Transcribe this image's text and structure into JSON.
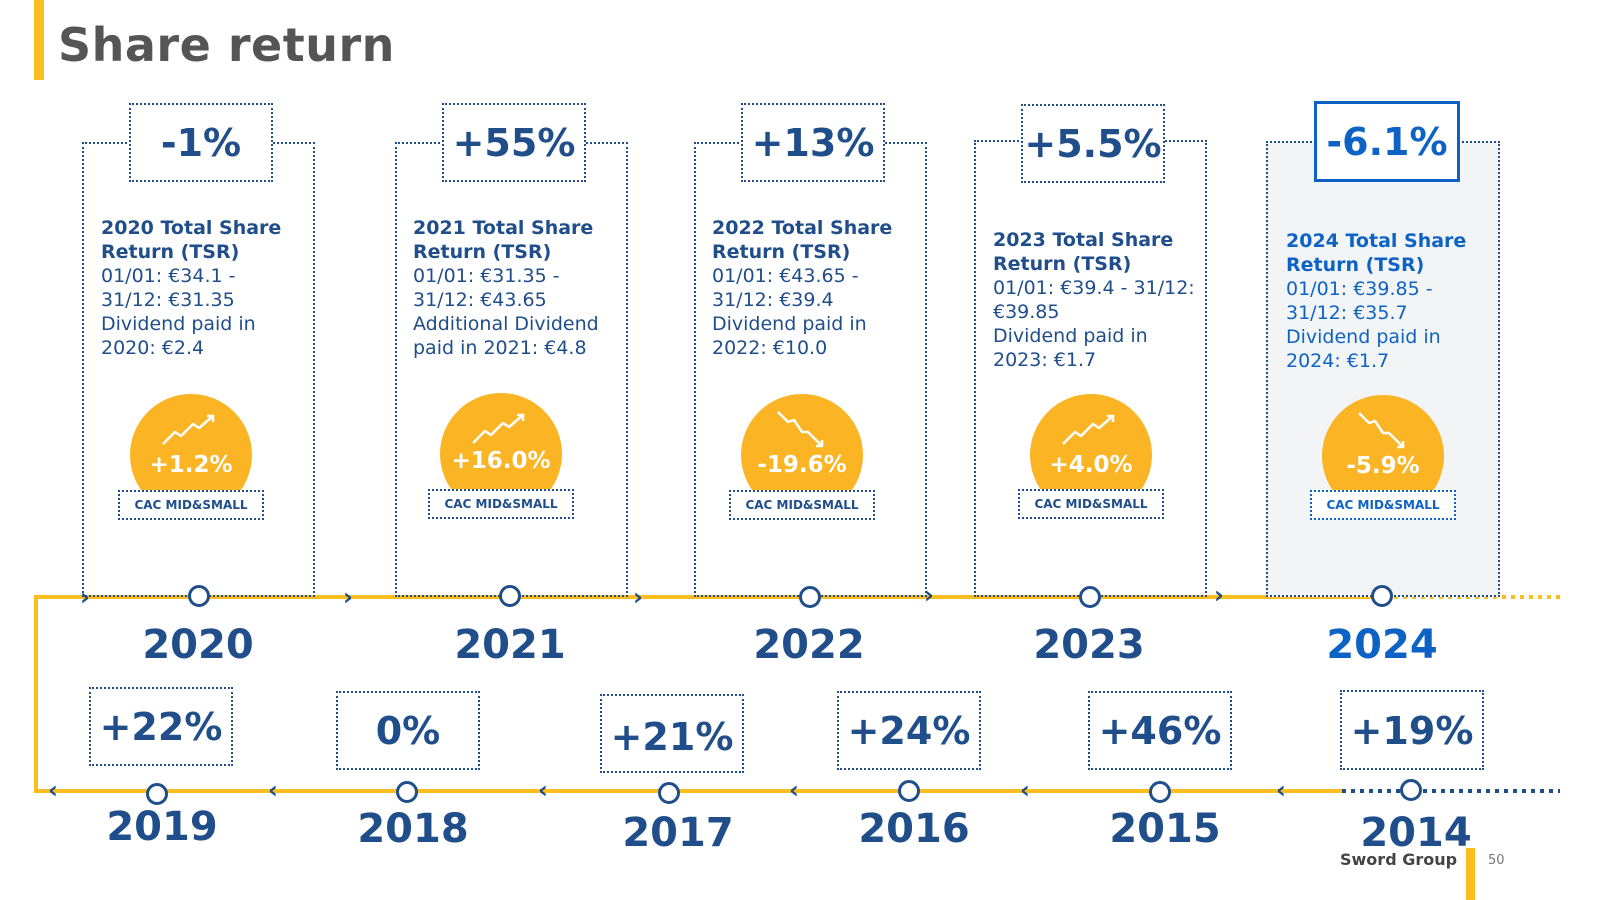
{
  "title": "Share return",
  "index_label": "CAC MID&SMALL",
  "recent": [
    {
      "year": "2020",
      "tsr": "-1%",
      "heading": "2020 Total Share Return (TSR)",
      "prices": "01/01: €34.1 - 31/12: €31.35",
      "dividend": "Dividend paid in 2020: €2.4",
      "index_return": "+1.2%",
      "trend": "up",
      "current": false
    },
    {
      "year": "2021",
      "tsr": "+55%",
      "heading": "2021 Total Share Return (TSR)",
      "prices": "01/01: €31.35 - 31/12: €43.65",
      "dividend": "Additional Dividend paid in 2021: €4.8",
      "index_return": "+16.0%",
      "trend": "up",
      "current": false
    },
    {
      "year": "2022",
      "tsr": "+13%",
      "heading": "2022 Total Share Return (TSR)",
      "prices": "01/01: €43.65 - 31/12: €39.4",
      "dividend": "Dividend paid in 2022: €10.0",
      "index_return": "-19.6%",
      "trend": "down",
      "current": false
    },
    {
      "year": "2023",
      "tsr": "+5.5%",
      "heading": "2023 Total Share Return (TSR)",
      "prices": "01/01: €39.4 - 31/12: €39.85",
      "dividend": "Dividend paid in 2023: €1.7",
      "index_return": "+4.0%",
      "trend": "up",
      "current": false
    },
    {
      "year": "2024",
      "tsr": "-6.1%",
      "heading": "2024 Total Share Return (TSR)",
      "prices": "01/01: €39.85 - 31/12: €35.7",
      "dividend": "Dividend paid in 2024: €1.7",
      "index_return": "-5.9%",
      "trend": "down",
      "current": true
    }
  ],
  "history": [
    {
      "year": "2019",
      "tsr": "+22%"
    },
    {
      "year": "2018",
      "tsr": "0%"
    },
    {
      "year": "2017",
      "tsr": "+21%"
    },
    {
      "year": "2016",
      "tsr": "+24%"
    },
    {
      "year": "2015",
      "tsr": "+46%"
    },
    {
      "year": "2014",
      "tsr": "+19%"
    }
  ],
  "footer": {
    "brand": "Sword Group",
    "page": "50"
  },
  "colors": {
    "accent": "#fbbd20",
    "navy": "#1f4e8a",
    "current_blue": "#0d63c5",
    "coin": "#fbb424"
  }
}
